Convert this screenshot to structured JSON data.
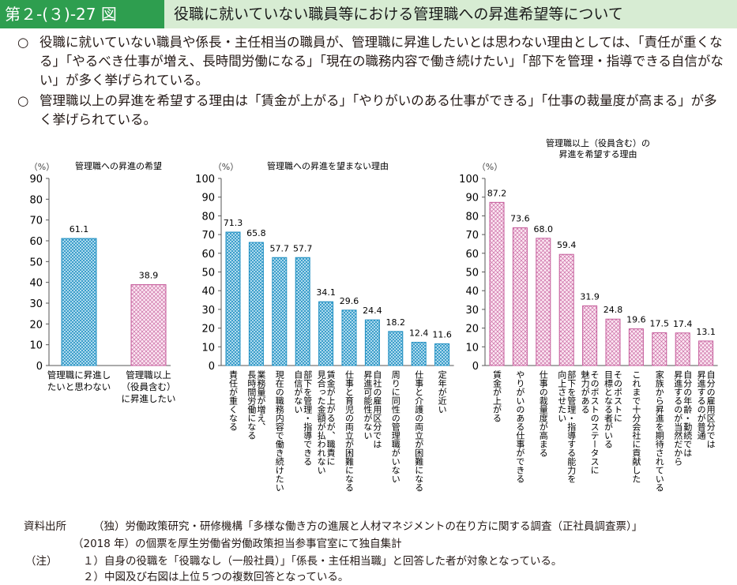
{
  "header": {
    "tag": "第２-(３)-27 図",
    "title": "役職に就いていない職員等における管理職への昇進希望等について"
  },
  "summary": [
    {
      "bullet": "○",
      "text": "役職に就いていない職員や係長・主任相当の職員が、管理職に昇進したいとは思わない理由としては、「責任が重くなる」「やるべき仕事が増え、長時間労働になる」「現在の職務内容で働き続けたい」「部下を管理・指導できる自信がない」が多く挙げられている。"
    },
    {
      "bullet": "○",
      "text": "管理職以上の昇進を希望する理由は「賃金が上がる」「やりがいのある仕事ができる」「仕事の裁量度が高まる」が多く挙げられている。"
    }
  ],
  "chart_data": [
    {
      "type": "bar",
      "title": "管理職への昇進の希望",
      "ylabel": "（%）",
      "ylim": [
        0,
        90
      ],
      "yticks": [
        0,
        10,
        20,
        30,
        40,
        50,
        60,
        70,
        80,
        90
      ],
      "categories": [
        "管理職に昇進したいと思わない",
        "管理職以上（役員含む）に昇進したい"
      ],
      "category_lines": [
        [
          "管理職に昇進し",
          "たいと思わない"
        ],
        [
          "管理職以上",
          "（役員含む）",
          "に昇進したい"
        ]
      ],
      "values": [
        61.1,
        38.9
      ],
      "value_labels": [
        "61.1",
        "38.9"
      ],
      "patterns": [
        "blue",
        "pink"
      ]
    },
    {
      "type": "bar",
      "title": "管理職への昇進を望まない理由",
      "ylabel": "（%）",
      "ylim": [
        0,
        100
      ],
      "yticks": [
        0,
        10,
        20,
        30,
        40,
        50,
        60,
        70,
        80,
        90,
        100
      ],
      "categories": [
        "責任が重くなる",
        "業務量が増え、長時間労働になる",
        "現在の職務内容で働き続けたい",
        "部下を管理・指導できる自信がない",
        "賃金が上がるが、職責に見合った金額が払われない",
        "仕事と育児の両立が困難になる",
        "自社の雇用区分では昇進可能性がない",
        "周りに同性の管理職がいない",
        "仕事と介護の両立が困難になる",
        "定年が近い"
      ],
      "category_lines": [
        [
          "責任が重くなる"
        ],
        [
          "業務量が増え、",
          "長時間労働になる"
        ],
        [
          "現在の職務内容で働き続けたい"
        ],
        [
          "部下を管理・指導できる",
          "自信がない"
        ],
        [
          "賃金が上がるが、職責に",
          "見合った金額が払われない"
        ],
        [
          "仕事と育児の両立が困難になる"
        ],
        [
          "自社の雇用区分では",
          "昇進可能性がない"
        ],
        [
          "周りに同性の管理職がいない"
        ],
        [
          "仕事と介護の両立が困難になる"
        ],
        [
          "定年が近い"
        ]
      ],
      "values": [
        71.3,
        65.8,
        57.7,
        57.7,
        34.1,
        29.6,
        24.4,
        18.2,
        12.4,
        11.6
      ],
      "value_labels": [
        "71.3",
        "65.8",
        "57.7",
        "57.7",
        "34.1",
        "29.6",
        "24.4",
        "18.2",
        "12.4",
        "11.6"
      ],
      "pattern": "blue"
    },
    {
      "type": "bar",
      "title": "管理職以上（役員含む）の昇進を希望する理由",
      "title_lines": [
        "管理職以上（役員含む）の",
        "昇進を希望する理由"
      ],
      "ylabel": "（%）",
      "ylim": [
        0,
        100
      ],
      "yticks": [
        0,
        10,
        20,
        30,
        40,
        50,
        60,
        70,
        80,
        90,
        100
      ],
      "categories": [
        "賃金が上がる",
        "やりがいのある仕事ができる",
        "仕事の裁量度が高まる",
        "部下を管理・指導する能力を向上させたい",
        "そのポストのステータスに魅力がある",
        "そのポストに目標となる者がいる",
        "これまで十分会社に貢献した",
        "家族から昇進を期待されている",
        "自分の年齢・勤続では昇進するのが当然だから",
        "自分の雇用区分では昇進するのが普通"
      ],
      "category_lines": [
        [
          "賃金が上がる"
        ],
        [
          "やりがいのある仕事ができる"
        ],
        [
          "仕事の裁量度が高まる"
        ],
        [
          "部下を管理・指導する能力を",
          "向上させたい"
        ],
        [
          "そのポストのステータスに",
          "魅力がある"
        ],
        [
          "そのポストに",
          "目標となる者がいる"
        ],
        [
          "これまで十分会社に貢献した"
        ],
        [
          "家族から昇進を期待されている"
        ],
        [
          "自分の年齢・勤続では",
          "昇進するのが当然だから"
        ],
        [
          "自分の雇用区分では",
          "昇進するのが普通"
        ]
      ],
      "values": [
        87.2,
        73.6,
        68.0,
        59.4,
        31.9,
        24.8,
        19.6,
        17.5,
        17.4,
        13.1
      ],
      "value_labels": [
        "87.2",
        "73.6",
        "68.0",
        "59.4",
        "31.9",
        "24.8",
        "19.6",
        "17.5",
        "17.4",
        "13.1"
      ],
      "pattern": "pink"
    }
  ],
  "colors": {
    "header_tag_bg": "#2e9e4f",
    "header_title_bg": "#d7ecd3",
    "blue_fill": "#cdeaf7",
    "blue_stroke": "#1f8fc2",
    "pink_fill": "#fbe6f1",
    "pink_stroke": "#c45a9a"
  },
  "footer": {
    "source_label": "資料出所",
    "source_line1": "（独）労働政策研究・研修機構「多様な働き方の進展と人材マネジメントの在り方に関する調査（正社員調査票）」",
    "source_line2": "（2018 年）の個票を厚生労働省労働政策担当参事官室にて独自集計",
    "note_label": "（注）",
    "note1": "１）自身の役職を「役職なし（一般社員）」「係長・主任相当職」と回答した者が対象となっている。",
    "note2": "２）中図及び右図は上位５つの複数回答となっている。"
  }
}
